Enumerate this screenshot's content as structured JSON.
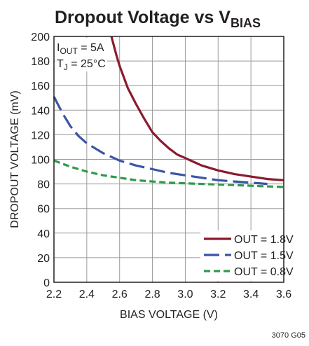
{
  "chart_data": {
    "type": "line",
    "title": "Dropout Voltage vs V",
    "title_subscript": "BIAS",
    "xlabel": "BIAS VOLTAGE (V)",
    "ylabel": "DROPOUT VOLTAGE (mV)",
    "xlim": [
      2.2,
      3.6
    ],
    "ylim": [
      0,
      200
    ],
    "x_ticks": [
      "2.2",
      "2.4",
      "2.6",
      "2.8",
      "3.0",
      "3.2",
      "3.4",
      "3.6"
    ],
    "y_ticks": [
      "0",
      "20",
      "40",
      "60",
      "80",
      "100",
      "120",
      "140",
      "160",
      "180",
      "200"
    ],
    "grid": true,
    "legend_position": "bottom-right",
    "conditions": {
      "iout_prefix": "I",
      "iout_sub": "OUT",
      "iout_value": " = 5A",
      "tj_prefix": "T",
      "tj_sub": "J",
      "tj_value": " = 25°C"
    },
    "series": [
      {
        "name": "OUT = 1.8V",
        "color": "#8b1a2e",
        "dash": "solid",
        "points": [
          [
            2.55,
            200
          ],
          [
            2.58,
            185
          ],
          [
            2.6,
            176
          ],
          [
            2.65,
            158
          ],
          [
            2.7,
            145
          ],
          [
            2.75,
            133
          ],
          [
            2.8,
            122
          ],
          [
            2.85,
            115
          ],
          [
            2.9,
            109
          ],
          [
            2.95,
            104
          ],
          [
            3.0,
            101
          ],
          [
            3.05,
            98
          ],
          [
            3.1,
            95
          ],
          [
            3.15,
            93
          ],
          [
            3.2,
            91
          ],
          [
            3.3,
            88
          ],
          [
            3.4,
            86
          ],
          [
            3.5,
            84
          ],
          [
            3.6,
            83
          ]
        ]
      },
      {
        "name": "OUT = 1.5V",
        "color": "#3a55a4",
        "dash": "long-dash",
        "points": [
          [
            2.2,
            151
          ],
          [
            2.25,
            138
          ],
          [
            2.3,
            127
          ],
          [
            2.35,
            119
          ],
          [
            2.4,
            113
          ],
          [
            2.5,
            105
          ],
          [
            2.6,
            99
          ],
          [
            2.7,
            95
          ],
          [
            2.8,
            92
          ],
          [
            2.9,
            89
          ],
          [
            3.0,
            87
          ],
          [
            3.1,
            85
          ],
          [
            3.2,
            83
          ],
          [
            3.3,
            82
          ],
          [
            3.4,
            81
          ],
          [
            3.5,
            80
          ]
        ]
      },
      {
        "name": "OUT = 0.8V",
        "color": "#2f9a4a",
        "dash": "short-dash",
        "points": [
          [
            2.2,
            99
          ],
          [
            2.3,
            94
          ],
          [
            2.4,
            90
          ],
          [
            2.5,
            87
          ],
          [
            2.6,
            85
          ],
          [
            2.7,
            83
          ],
          [
            2.8,
            82
          ],
          [
            2.9,
            81
          ],
          [
            3.0,
            80.5
          ],
          [
            3.2,
            79.5
          ],
          [
            3.4,
            78.5
          ],
          [
            3.6,
            77.5
          ]
        ]
      }
    ]
  },
  "figure_code": "3070 G05"
}
